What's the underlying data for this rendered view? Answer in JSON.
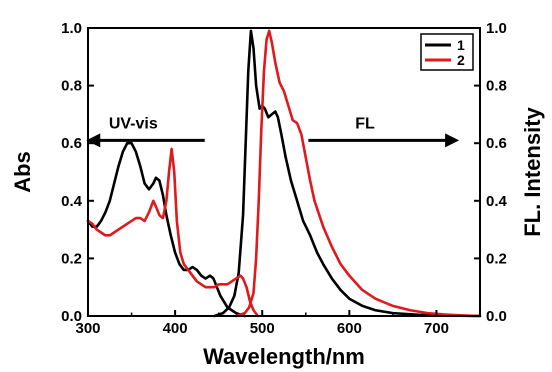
{
  "chart_data": {
    "type": "line",
    "xlabel": "Wavelength/nm",
    "ylabel_left": "Abs",
    "ylabel_right": "FL. Intensity",
    "xlim": [
      300,
      750
    ],
    "ylim_left": [
      0,
      1.0
    ],
    "ylim_right": [
      0,
      1.0
    ],
    "x_ticks": [
      300,
      400,
      500,
      600,
      700
    ],
    "x_tick_labels": [
      "300",
      "400",
      "500",
      "600",
      "700"
    ],
    "y_ticks": [
      0.0,
      0.2,
      0.4,
      0.6,
      0.8,
      1.0
    ],
    "y_tick_labels_left": [
      "0.0",
      "0.2",
      "0.4",
      "0.6",
      "0.8",
      "1.0"
    ],
    "y_tick_labels_right": [
      "0.0",
      "0.2",
      "0.4",
      "0.6",
      "0.8",
      "1.0"
    ],
    "grid": false,
    "legend_position": "top-right",
    "annotations": [
      {
        "text": "UV-vis",
        "direction": "left"
      },
      {
        "text": "FL",
        "direction": "right"
      }
    ],
    "colors": {
      "series_1": "#000000",
      "series_2": "#e0191b"
    },
    "series": [
      {
        "name": "1",
        "kind": "absorption",
        "color": "#000000",
        "points": [
          [
            300,
            0.33
          ],
          [
            305,
            0.31
          ],
          [
            310,
            0.31
          ],
          [
            315,
            0.33
          ],
          [
            320,
            0.36
          ],
          [
            325,
            0.4
          ],
          [
            330,
            0.46
          ],
          [
            335,
            0.52
          ],
          [
            340,
            0.57
          ],
          [
            345,
            0.6
          ],
          [
            350,
            0.6
          ],
          [
            355,
            0.57
          ],
          [
            360,
            0.52
          ],
          [
            365,
            0.46
          ],
          [
            370,
            0.44
          ],
          [
            375,
            0.46
          ],
          [
            378,
            0.48
          ],
          [
            382,
            0.47
          ],
          [
            386,
            0.42
          ],
          [
            390,
            0.35
          ],
          [
            395,
            0.28
          ],
          [
            400,
            0.22
          ],
          [
            405,
            0.18
          ],
          [
            410,
            0.16
          ],
          [
            415,
            0.16
          ],
          [
            420,
            0.17
          ],
          [
            425,
            0.16
          ],
          [
            430,
            0.14
          ],
          [
            435,
            0.13
          ],
          [
            440,
            0.14
          ],
          [
            444,
            0.13
          ],
          [
            448,
            0.1
          ],
          [
            452,
            0.07
          ],
          [
            456,
            0.05
          ],
          [
            460,
            0.03
          ],
          [
            465,
            0.02
          ],
          [
            470,
            0.01
          ],
          [
            475,
            0.005
          ],
          [
            480,
            0.0
          ]
        ]
      },
      {
        "name": "1",
        "kind": "emission",
        "color": "#000000",
        "points": [
          [
            445,
            0.0
          ],
          [
            455,
            0.01
          ],
          [
            462,
            0.03
          ],
          [
            468,
            0.07
          ],
          [
            473,
            0.15
          ],
          [
            478,
            0.35
          ],
          [
            481,
            0.6
          ],
          [
            484,
            0.85
          ],
          [
            487,
            0.99
          ],
          [
            490,
            0.93
          ],
          [
            493,
            0.8
          ],
          [
            497,
            0.72
          ],
          [
            500,
            0.73
          ],
          [
            503,
            0.72
          ],
          [
            507,
            0.69
          ],
          [
            511,
            0.7
          ],
          [
            515,
            0.71
          ],
          [
            518,
            0.69
          ],
          [
            522,
            0.63
          ],
          [
            527,
            0.55
          ],
          [
            533,
            0.47
          ],
          [
            540,
            0.4
          ],
          [
            547,
            0.33
          ],
          [
            555,
            0.28
          ],
          [
            563,
            0.22
          ],
          [
            570,
            0.18
          ],
          [
            580,
            0.13
          ],
          [
            590,
            0.09
          ],
          [
            600,
            0.06
          ],
          [
            615,
            0.035
          ],
          [
            630,
            0.02
          ],
          [
            650,
            0.01
          ],
          [
            680,
            0.004
          ],
          [
            720,
            0.001
          ],
          [
            750,
            0.0
          ]
        ]
      },
      {
        "name": "2",
        "kind": "absorption",
        "color": "#e0191b",
        "points": [
          [
            300,
            0.33
          ],
          [
            305,
            0.32
          ],
          [
            310,
            0.3
          ],
          [
            315,
            0.29
          ],
          [
            320,
            0.28
          ],
          [
            325,
            0.28
          ],
          [
            330,
            0.29
          ],
          [
            335,
            0.3
          ],
          [
            340,
            0.31
          ],
          [
            345,
            0.32
          ],
          [
            350,
            0.33
          ],
          [
            355,
            0.34
          ],
          [
            360,
            0.34
          ],
          [
            365,
            0.33
          ],
          [
            370,
            0.36
          ],
          [
            375,
            0.4
          ],
          [
            378,
            0.38
          ],
          [
            382,
            0.35
          ],
          [
            386,
            0.34
          ],
          [
            390,
            0.4
          ],
          [
            393,
            0.5
          ],
          [
            396,
            0.58
          ],
          [
            399,
            0.5
          ],
          [
            402,
            0.33
          ],
          [
            406,
            0.22
          ],
          [
            410,
            0.18
          ],
          [
            415,
            0.16
          ],
          [
            420,
            0.14
          ],
          [
            425,
            0.12
          ],
          [
            430,
            0.11
          ],
          [
            435,
            0.1
          ],
          [
            440,
            0.1
          ],
          [
            445,
            0.1
          ],
          [
            450,
            0.11
          ],
          [
            455,
            0.11
          ],
          [
            460,
            0.11
          ],
          [
            465,
            0.12
          ],
          [
            470,
            0.13
          ],
          [
            475,
            0.14
          ],
          [
            478,
            0.13
          ],
          [
            482,
            0.1
          ],
          [
            486,
            0.05
          ],
          [
            490,
            0.02
          ],
          [
            495,
            0.0
          ]
        ]
      },
      {
        "name": "2",
        "kind": "emission",
        "color": "#e0191b",
        "points": [
          [
            470,
            0.0
          ],
          [
            480,
            0.01
          ],
          [
            485,
            0.03
          ],
          [
            490,
            0.08
          ],
          [
            493,
            0.2
          ],
          [
            496,
            0.4
          ],
          [
            499,
            0.65
          ],
          [
            502,
            0.85
          ],
          [
            505,
            0.96
          ],
          [
            508,
            0.99
          ],
          [
            511,
            0.95
          ],
          [
            515,
            0.88
          ],
          [
            520,
            0.81
          ],
          [
            525,
            0.78
          ],
          [
            530,
            0.73
          ],
          [
            535,
            0.68
          ],
          [
            540,
            0.67
          ],
          [
            545,
            0.63
          ],
          [
            550,
            0.55
          ],
          [
            555,
            0.47
          ],
          [
            560,
            0.4
          ],
          [
            570,
            0.31
          ],
          [
            580,
            0.24
          ],
          [
            590,
            0.18
          ],
          [
            600,
            0.14
          ],
          [
            615,
            0.09
          ],
          [
            630,
            0.06
          ],
          [
            650,
            0.035
          ],
          [
            670,
            0.02
          ],
          [
            690,
            0.01
          ],
          [
            710,
            0.005
          ],
          [
            730,
            0.002
          ],
          [
            750,
            0.0
          ]
        ]
      }
    ],
    "legend": [
      {
        "label": "1",
        "color": "#000000"
      },
      {
        "label": "2",
        "color": "#e0191b"
      }
    ]
  }
}
